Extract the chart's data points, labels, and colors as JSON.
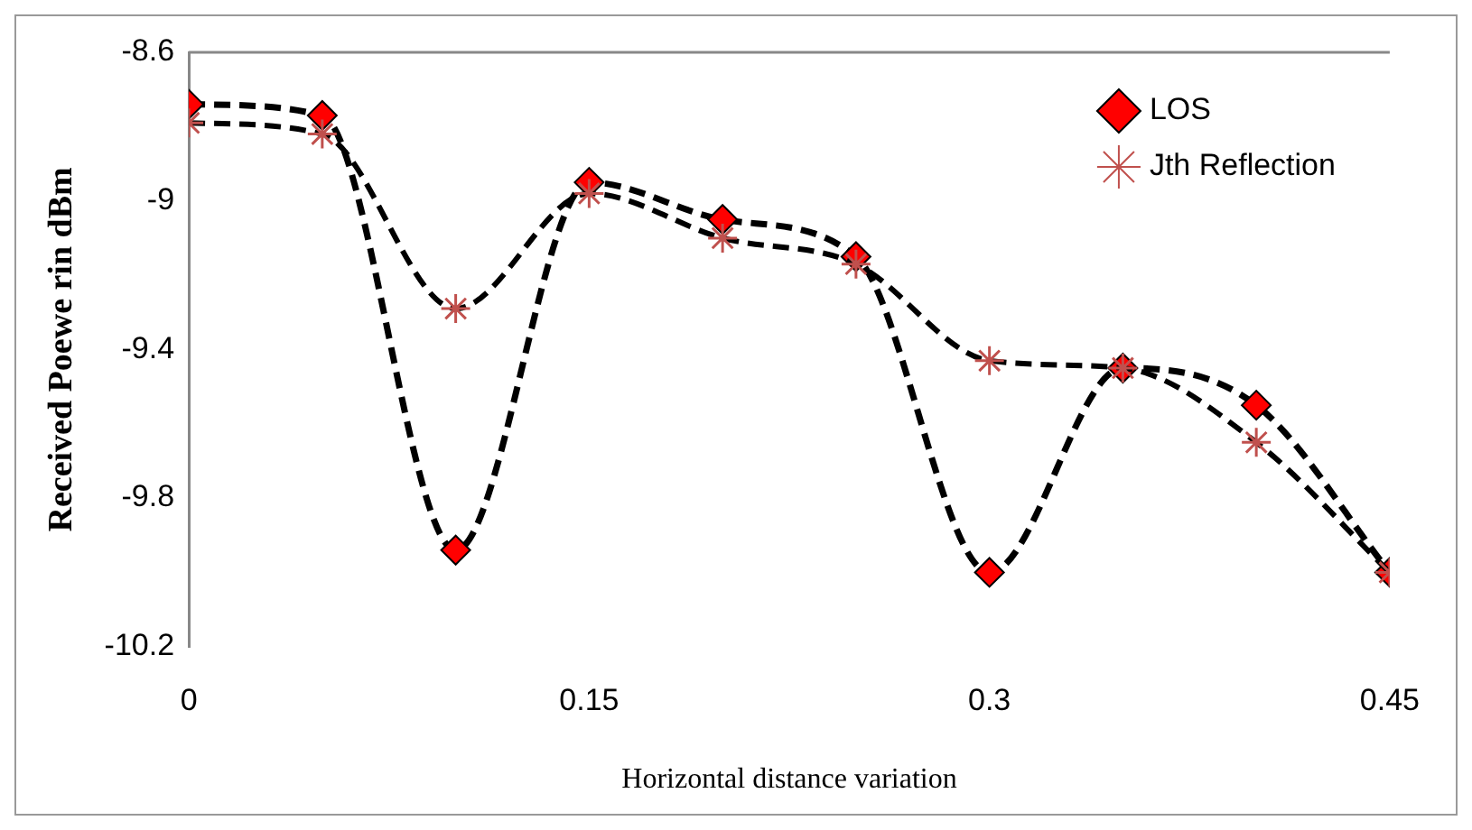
{
  "chart_data": {
    "type": "line",
    "xlabel": "Horizontal distance variation",
    "ylabel": "Received Poewe rin dBm",
    "x": [
      0,
      0.05,
      0.1,
      0.15,
      0.2,
      0.25,
      0.3,
      0.35,
      0.4,
      0.45
    ],
    "series": [
      {
        "name": "LOS",
        "color": "#000000",
        "marker": "diamond",
        "line_style": "dashed",
        "values": [
          -8.74,
          -8.77,
          -9.94,
          -8.95,
          -9.05,
          -9.15,
          -10.0,
          -9.45,
          -9.55,
          -10.0
        ]
      },
      {
        "name": "Jth Reflection",
        "color": "#000000",
        "marker": "cross",
        "line_style": "dashed",
        "values": [
          -8.79,
          -8.82,
          -9.29,
          -8.98,
          -9.1,
          -9.17,
          -9.43,
          -9.45,
          -9.65,
          -10.0
        ]
      }
    ],
    "xlim": [
      0,
      0.45
    ],
    "xticks": [
      0,
      0.15,
      0.3,
      0.45
    ],
    "ylim": [
      -10.2,
      -8.6
    ],
    "yticks": [
      -10.2,
      -9.8,
      -9.4,
      -9,
      -8.6
    ],
    "grid": false,
    "legend": "top right"
  }
}
